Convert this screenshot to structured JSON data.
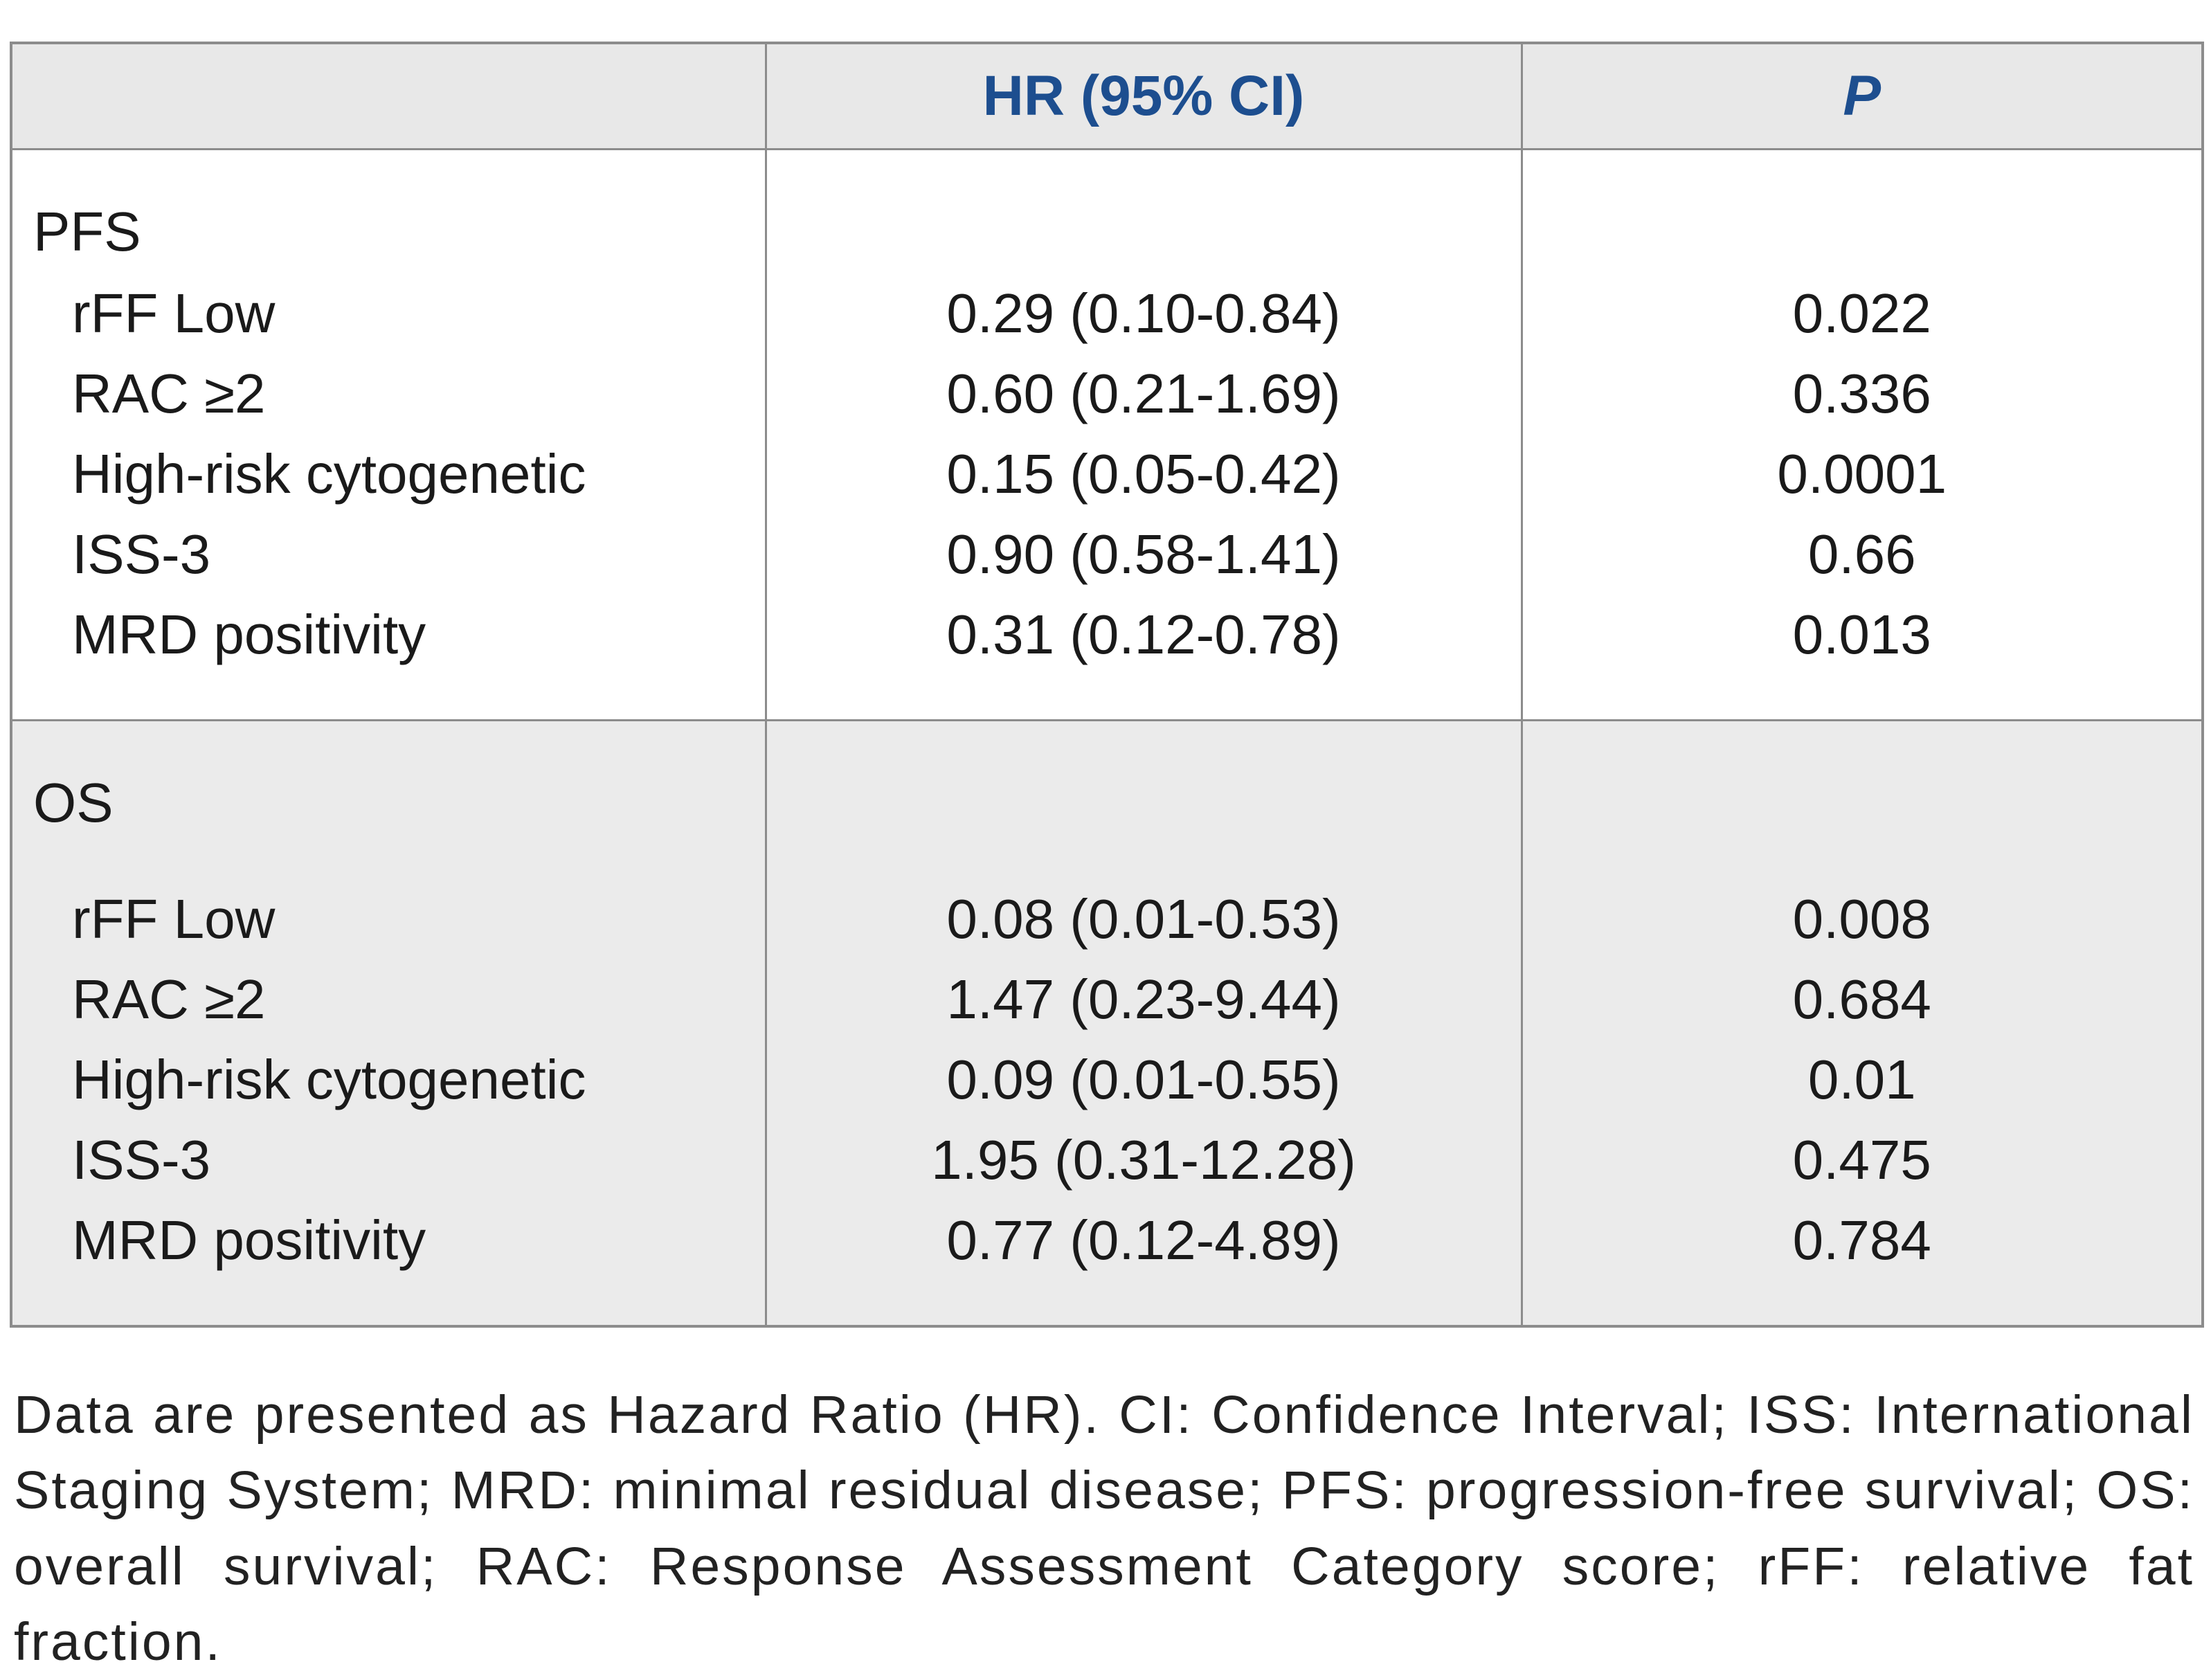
{
  "table": {
    "columns": [
      "",
      "HR (95% CI)",
      "P"
    ],
    "sections": [
      {
        "label": "PFS",
        "rows": [
          {
            "label": "rFF Low",
            "hr": "0.29 (0.10-0.84)",
            "p": "0.022"
          },
          {
            "label": "RAC ≥2",
            "hr": "0.60 (0.21-1.69)",
            "p": "0.336"
          },
          {
            "label": "High-risk cytogenetic",
            "hr": "0.15 (0.05-0.42)",
            "p": "0.0001"
          },
          {
            "label": "ISS-3",
            "hr": "0.90 (0.58-1.41)",
            "p": "0.66"
          },
          {
            "label": "MRD positivity",
            "hr": "0.31 (0.12-0.78)",
            "p": "0.013"
          }
        ]
      },
      {
        "label": "OS",
        "rows": [
          {
            "label": "rFF Low",
            "hr": "0.08 (0.01-0.53)",
            "p": "0.008"
          },
          {
            "label": "RAC ≥2",
            "hr": "1.47 (0.23-9.44)",
            "p": "0.684"
          },
          {
            "label": "High-risk cytogenetic",
            "hr": "0.09 (0.01-0.55)",
            "p": "0.01"
          },
          {
            "label": "ISS-3",
            "hr": "1.95 (0.31-12.28)",
            "p": "0.475"
          },
          {
            "label": "MRD positivity",
            "hr": "0.77 (0.12-4.89)",
            "p": "0.784"
          }
        ]
      }
    ]
  },
  "footnote": "Data are presented as Hazard Ratio (HR). CI: Confidence Interval; ISS: International Staging System; MRD: minimal residual disease; PFS: progression-free survival; OS: overall survival; RAC: Response Assessment Category score; rFF: relative fat fraction.",
  "colors": {
    "header_text": "#1d4e8f",
    "border": "#8c8c8c",
    "header_bg": "#e8e8e8",
    "os_section_bg": "#ebebeb"
  }
}
